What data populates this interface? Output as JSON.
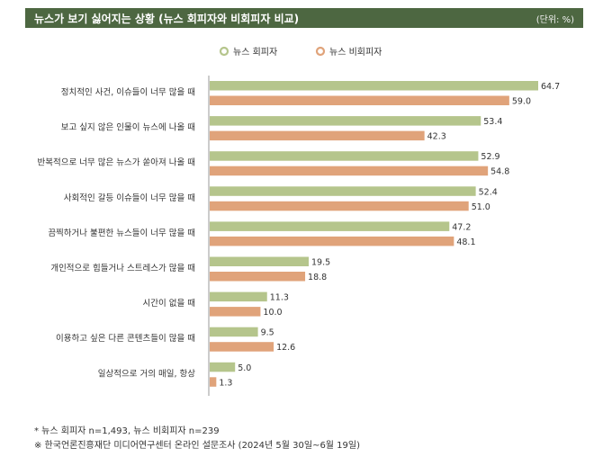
{
  "header": {
    "title": "뉴스가 보기 싫어지는 상황 (뉴스 회피자와 비회피자 비교)",
    "unit": "(단위: %)"
  },
  "colors": {
    "header_bg": "#4d6741",
    "avoider": "#b5c58c",
    "non_avoider": "#e0a37a"
  },
  "chart_data": {
    "type": "bar",
    "orientation": "horizontal",
    "categories": [
      "정치적인 사건, 이슈들이 너무 많을 때",
      "보고 싶지 않은 인물이 뉴스에 나올 때",
      "반복적으로 너무 많은 뉴스가 쏟아져 나올 때",
      "사회적인 갈등 이슈들이 너무 많을 때",
      "끔찍하거나 불편한 뉴스들이 너무 많을 때",
      "개인적으로 힘들거나 스트레스가 많을 때",
      "시간이 없을 때",
      "이용하고 싶은 다른 콘텐츠들이 많을 때",
      "일상적으로 거의 매일, 항상"
    ],
    "series": [
      {
        "name": "뉴스 회피자",
        "values": [
          64.7,
          53.4,
          52.9,
          52.4,
          47.2,
          19.5,
          11.3,
          9.5,
          5.0
        ]
      },
      {
        "name": "뉴스 비회피자",
        "values": [
          59.0,
          42.3,
          54.8,
          51.0,
          48.1,
          18.8,
          10.0,
          12.6,
          1.3
        ]
      }
    ],
    "legend_position": "top-center",
    "grid": false
  },
  "notes": {
    "sample": "* 뉴스 회피자 n=1,493,  뉴스 비회피자 n=239",
    "source": "※ 한국언론진흥재단 미디어연구센터 온라인 설문조사 (2024년 5월 30일~6월 19일)"
  }
}
